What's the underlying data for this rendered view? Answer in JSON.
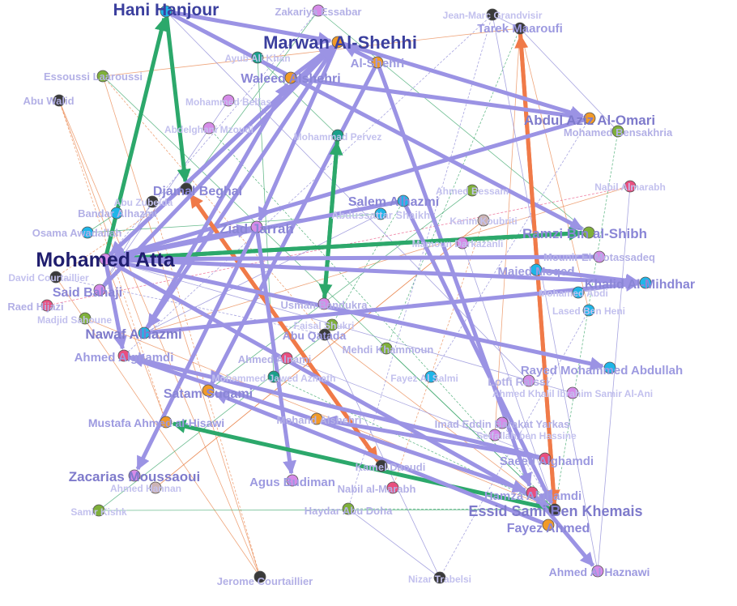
{
  "colors": {
    "highlight_edge_purple": "#9b93e4",
    "highlight_edge_green": "#2ca86b",
    "highlight_edge_orange": "#f07a48",
    "thin_edge_orange": "#e9874f",
    "thin_edge_green": "#3aa56a",
    "thin_edge_purple": "#8a86d6",
    "node_cyan": "#1fb6e8",
    "node_orange": "#f19a28",
    "node_purple": "#d68be8",
    "node_green": "#7fb03a",
    "node_pink": "#e94f7f",
    "node_dark": "#3a3a3a",
    "node_teal": "#1aa08a",
    "node_tan": "#cdb4b4",
    "node_stroke": "#555555"
  },
  "nodes": [
    {
      "id": "hani",
      "label": "Hani Hanjour",
      "color": "cyan",
      "weight": "major"
    },
    {
      "id": "zakariya",
      "label": "Zakariya Essabar",
      "color": "purple",
      "weight": "minor"
    },
    {
      "id": "jeanmarc",
      "label": "Jean-Marc Grandvisir",
      "color": "dark",
      "weight": "minor"
    },
    {
      "id": "tarek",
      "label": "Tarek Maaroufi",
      "color": "dark",
      "weight": "mid"
    },
    {
      "id": "marwan",
      "label": "Marwan Al-Shehhi",
      "color": "orange",
      "weight": "major"
    },
    {
      "id": "ayub",
      "label": "Ayub Ali Khan",
      "color": "teal",
      "weight": "minor"
    },
    {
      "id": "alshehri",
      "label": "Al-Shehri",
      "color": "orange",
      "weight": "mid"
    },
    {
      "id": "waleed",
      "label": "Waleed Alshehri",
      "color": "orange",
      "weight": "mid"
    },
    {
      "id": "essoussi",
      "label": "Essoussi Laaroussi",
      "color": "green",
      "weight": "minor"
    },
    {
      "id": "abuwalid",
      "label": "Abu Walid",
      "color": "dark",
      "weight": "minor"
    },
    {
      "id": "belfas",
      "label": "Mohammed Belfas",
      "color": "purple",
      "weight": "minor"
    },
    {
      "id": "abdulaziz",
      "label": "Abdul Aziz Al-Omari",
      "color": "orange",
      "weight": "mid"
    },
    {
      "id": "bensakhria",
      "label": "Mohamed Bensakhria",
      "color": "green",
      "weight": "minor"
    },
    {
      "id": "mzoudi",
      "label": "Abdelghani Mzoudi",
      "color": "purple",
      "weight": "minor"
    },
    {
      "id": "pervez",
      "label": "Mohammad Pervez",
      "color": "teal",
      "weight": "minor"
    },
    {
      "id": "nabil1",
      "label": "Nabil Almarabh",
      "color": "pink",
      "weight": "minor"
    },
    {
      "id": "djamel",
      "label": "Djamal Beghal",
      "color": "dark",
      "weight": "mid"
    },
    {
      "id": "abuzubeida",
      "label": "Abu Zubeida",
      "color": "dark",
      "weight": "minor"
    },
    {
      "id": "ahmedbessam",
      "label": "Ahmed Bessam",
      "color": "green",
      "weight": "minor"
    },
    {
      "id": "salem",
      "label": "Salem Alhazmi",
      "color": "cyan",
      "weight": "mid"
    },
    {
      "id": "bandar",
      "label": "Bandar Alhazmi",
      "color": "cyan",
      "weight": "minor"
    },
    {
      "id": "abdussattar",
      "label": "Abdussattar Shaikh",
      "color": "cyan",
      "weight": "minor"
    },
    {
      "id": "kamel",
      "label": "Kamel Daoudi",
      "color": "dark",
      "weight": "minor"
    },
    {
      "id": "karim",
      "label": "Karim Koubriti",
      "color": "tan",
      "weight": "minor"
    },
    {
      "id": "ziad",
      "label": "Ziad Jarrah",
      "color": "purple",
      "weight": "mid"
    },
    {
      "id": "osama",
      "label": "Osama Awadallah",
      "color": "cyan",
      "weight": "minor"
    },
    {
      "id": "mamoun",
      "label": "Mamoun Darkazanli",
      "color": "purple",
      "weight": "minor"
    },
    {
      "id": "ramzi",
      "label": "Ramzi Bin al-Shibh",
      "color": "green",
      "weight": "mid"
    },
    {
      "id": "atta",
      "label": "Mohamed Atta",
      "color": "purple",
      "weight": "major"
    },
    {
      "id": "mounir",
      "label": "Mounir El Motassadeq",
      "color": "purple",
      "weight": "minor"
    },
    {
      "id": "davidc",
      "label": "David Courtaillier",
      "color": "dark",
      "weight": "minor"
    },
    {
      "id": "majed",
      "label": "Majed Moqed",
      "color": "cyan",
      "weight": "mid"
    },
    {
      "id": "khalid",
      "label": "Khalid Al-Mihdhar",
      "color": "cyan",
      "weight": "mid"
    },
    {
      "id": "saidbahaji",
      "label": "Said Bahaji",
      "color": "purple",
      "weight": "mid"
    },
    {
      "id": "mabdi",
      "label": "Mohamed Abdi",
      "color": "cyan",
      "weight": "minor"
    },
    {
      "id": "usman",
      "label": "Usman Bandukra",
      "color": "purple",
      "weight": "minor"
    },
    {
      "id": "raed",
      "label": "Raed Hijazi",
      "color": "pink",
      "weight": "minor"
    },
    {
      "id": "lased",
      "label": "Lased Ben Heni",
      "color": "cyan",
      "weight": "minor"
    },
    {
      "id": "madjid",
      "label": "Madjid Sahoune",
      "color": "green",
      "weight": "minor"
    },
    {
      "id": "faisal",
      "label": "Faisal Shukri",
      "color": "green",
      "weight": "minor"
    },
    {
      "id": "nawaf",
      "label": "Nawaf Alhazmi",
      "color": "cyan",
      "weight": "mid"
    },
    {
      "id": "abuqatada",
      "label": "Abu Qatada",
      "color": "dark",
      "weight": "minor"
    },
    {
      "id": "mehdi",
      "label": "Mehdi Khammoun",
      "color": "green",
      "weight": "minor"
    },
    {
      "id": "ahmedgh",
      "label": "Ahmed Alghamdi",
      "color": "pink",
      "weight": "mid"
    },
    {
      "id": "ahmednami",
      "label": "Ahmed Alnami",
      "color": "pink",
      "weight": "minor"
    },
    {
      "id": "rayed",
      "label": "Rayed Mohammed Abdullah",
      "color": "cyan",
      "weight": "mid"
    },
    {
      "id": "jawed",
      "label": "Mohammed Jawed Azmath",
      "color": "teal",
      "weight": "minor"
    },
    {
      "id": "fayezalsalmi",
      "label": "Fayez Al Salmi",
      "color": "cyan",
      "weight": "minor"
    },
    {
      "id": "lotfi",
      "label": "Lotfi Raissi",
      "color": "purple",
      "weight": "minor"
    },
    {
      "id": "ahmedkhalil",
      "label": "Ahmed Khalil Ibrahim Samir Al-Ani",
      "color": "purple",
      "weight": "minor"
    },
    {
      "id": "satam",
      "label": "Satam Suqami",
      "color": "orange",
      "weight": "mid"
    },
    {
      "id": "mustafa",
      "label": "Mustafa Ahmed al-Hisawi",
      "color": "orange",
      "weight": "mid"
    },
    {
      "id": "mohand",
      "label": "Mohand Alshehri",
      "color": "orange",
      "weight": "minor"
    },
    {
      "id": "imad",
      "label": "Imad Eddin Barakat Yarkas",
      "color": "purple",
      "weight": "minor"
    },
    {
      "id": "seifallah",
      "label": "Seifallah ben Hassine",
      "color": "purple",
      "weight": "minor"
    },
    {
      "id": "saeed",
      "label": "Saeed Alghamdi",
      "color": "pink",
      "weight": "mid"
    },
    {
      "id": "zacarias",
      "label": "Zacarias Moussaoui",
      "color": "purple",
      "weight": "mid"
    },
    {
      "id": "kamelmid",
      "label": "Kamel Daoudi",
      "color": "dark",
      "weight": "minor"
    },
    {
      "id": "agus",
      "label": "Agus Budiman",
      "color": "purple",
      "weight": "mid"
    },
    {
      "id": "ahmedh",
      "label": "Ahmed Hannan",
      "color": "tan",
      "weight": "minor"
    },
    {
      "id": "nabil2",
      "label": "Nabil al-Marabh",
      "color": "pink",
      "weight": "minor"
    },
    {
      "id": "hamza",
      "label": "Hamza Alghamdi",
      "color": "pink",
      "weight": "mid"
    },
    {
      "id": "samir",
      "label": "Samir Kishk",
      "color": "green",
      "weight": "minor"
    },
    {
      "id": "haydar",
      "label": "Haydar Abu Doha",
      "color": "green",
      "weight": "minor"
    },
    {
      "id": "essid",
      "label": "Essid Sami Ben Khemais",
      "color": "dark",
      "weight": "mid"
    },
    {
      "id": "fayez",
      "label": "Fayez Ahmed",
      "color": "orange",
      "weight": "mid"
    },
    {
      "id": "haznawi",
      "label": "Ahmed Al Haznawi",
      "color": "purple",
      "weight": "mid"
    },
    {
      "id": "jerome",
      "label": "Jerome Courtaillier",
      "color": "dark",
      "weight": "minor"
    },
    {
      "id": "nizar",
      "label": "Nizar Trabelsi",
      "color": "dark",
      "weight": "minor"
    }
  ],
  "highlight_edges": [
    {
      "from": "hani",
      "to": "marwan",
      "color": "purple"
    },
    {
      "from": "hani",
      "to": "djamel",
      "color": "green"
    },
    {
      "from": "atta",
      "to": "hani",
      "color": "green"
    },
    {
      "from": "hani",
      "to": "ramzi",
      "color": "purple"
    },
    {
      "from": "essid",
      "to": "tarek",
      "color": "orange"
    },
    {
      "from": "tarek",
      "to": "essid",
      "color": "orange"
    },
    {
      "from": "marwan",
      "to": "atta",
      "color": "purple"
    },
    {
      "from": "atta",
      "to": "marwan",
      "color": "purple"
    },
    {
      "from": "marwan",
      "to": "abdulaziz",
      "color": "purple"
    },
    {
      "from": "marwan",
      "to": "ziad",
      "color": "purple"
    },
    {
      "from": "marwan",
      "to": "nawaf",
      "color": "purple"
    },
    {
      "from": "waleed",
      "to": "marwan",
      "color": "purple"
    },
    {
      "from": "alshehri",
      "to": "marwan",
      "color": "purple"
    },
    {
      "from": "alshehri",
      "to": "satam",
      "color": "purple"
    },
    {
      "from": "alshehri",
      "to": "hamza",
      "color": "purple"
    },
    {
      "from": "waleed",
      "to": "abdulaziz",
      "color": "purple"
    },
    {
      "from": "abdulaziz",
      "to": "atta",
      "color": "purple"
    },
    {
      "from": "pervez",
      "to": "usman",
      "color": "green"
    },
    {
      "from": "usman",
      "to": "pervez",
      "color": "green"
    },
    {
      "from": "djamel",
      "to": "kamelmid",
      "color": "orange"
    },
    {
      "from": "kamelmid",
      "to": "djamel",
      "color": "orange"
    },
    {
      "from": "atta",
      "to": "ramzi",
      "color": "green"
    },
    {
      "from": "ramzi",
      "to": "atta",
      "color": "green"
    },
    {
      "from": "atta",
      "to": "ziad",
      "color": "purple"
    },
    {
      "from": "ziad",
      "to": "atta",
      "color": "purple"
    },
    {
      "from": "atta",
      "to": "khalid",
      "color": "purple"
    },
    {
      "from": "atta",
      "to": "rayed",
      "color": "purple"
    },
    {
      "from": "atta",
      "to": "essid",
      "color": "purple"
    },
    {
      "from": "salem",
      "to": "atta",
      "color": "purple"
    },
    {
      "from": "salem",
      "to": "essid",
      "color": "purple"
    },
    {
      "from": "nawaf",
      "to": "khalid",
      "color": "purple"
    },
    {
      "from": "nawaf",
      "to": "waleed",
      "color": "purple"
    },
    {
      "from": "majed",
      "to": "khalid",
      "color": "purple"
    },
    {
      "from": "ziad",
      "to": "agus",
      "color": "purple"
    },
    {
      "from": "ziad",
      "to": "zacarias",
      "color": "purple"
    },
    {
      "from": "ahmedgh",
      "to": "hamza",
      "color": "purple"
    },
    {
      "from": "saeed",
      "to": "mohand",
      "color": "purple"
    },
    {
      "from": "essid",
      "to": "mustafa",
      "color": "green"
    },
    {
      "from": "saeed",
      "to": "ahmedgh",
      "color": "purple"
    },
    {
      "from": "hamza",
      "to": "haznawi",
      "color": "purple"
    },
    {
      "from": "fayez",
      "to": "satam",
      "color": "purple"
    },
    {
      "from": "mounir",
      "to": "atta",
      "color": "purple"
    },
    {
      "from": "atta",
      "to": "ahmedgh",
      "color": "purple"
    },
    {
      "from": "saidbahaji",
      "to": "marwan",
      "color": "purple"
    }
  ],
  "thin_edges": [
    {
      "from": "zakariya",
      "to": "atta",
      "color": "purple"
    },
    {
      "from": "zakariya",
      "to": "ramzi",
      "color": "green"
    },
    {
      "from": "jeanmarc",
      "to": "tarek",
      "color": "purple"
    },
    {
      "from": "jeanmarc",
      "to": "ahmedgh",
      "color": "purple"
    },
    {
      "from": "essoussi",
      "to": "essid",
      "color": "green"
    },
    {
      "from": "essoussi",
      "to": "tarek",
      "color": "orange"
    },
    {
      "from": "abuwalid",
      "to": "mustafa",
      "color": "orange"
    },
    {
      "from": "abuwalid",
      "to": "nawaf",
      "color": "orange"
    },
    {
      "from": "belfas",
      "to": "saidbahaji",
      "color": "purple"
    },
    {
      "from": "mzoudi",
      "to": "essid",
      "color": "green"
    },
    {
      "from": "ayub",
      "to": "jawed",
      "color": "green"
    },
    {
      "from": "ayub",
      "to": "kamel",
      "color": "orange"
    },
    {
      "from": "nabil1",
      "to": "raed",
      "color": "pink"
    },
    {
      "from": "nabil1",
      "to": "nawaf",
      "color": "orange"
    },
    {
      "from": "abuzubeida",
      "to": "saidbahaji",
      "color": "purple"
    },
    {
      "from": "abuzubeida",
      "to": "jerome",
      "color": "orange"
    },
    {
      "from": "ahmedbessam",
      "to": "satam",
      "color": "green"
    },
    {
      "from": "abdussattar",
      "to": "nawaf",
      "color": "purple"
    },
    {
      "from": "karim",
      "to": "nabil2",
      "color": "orange"
    },
    {
      "from": "karim",
      "to": "ahmedh",
      "color": "orange"
    },
    {
      "from": "osama",
      "to": "abdussattar",
      "color": "green"
    },
    {
      "from": "mamoun",
      "to": "ramzi",
      "color": "green"
    },
    {
      "from": "mamoun",
      "to": "essid",
      "color": "purple"
    },
    {
      "from": "davidc",
      "to": "jerome",
      "color": "orange"
    },
    {
      "from": "davidc",
      "to": "abuqatada",
      "color": "purple"
    },
    {
      "from": "mabdi",
      "to": "khalid",
      "color": "purple"
    },
    {
      "from": "madjid",
      "to": "essid",
      "color": "orange"
    },
    {
      "from": "faisal",
      "to": "salem",
      "color": "green"
    },
    {
      "from": "abuqatada",
      "to": "essid",
      "color": "orange"
    },
    {
      "from": "abuqatada",
      "to": "nizar",
      "color": "purple"
    },
    {
      "from": "mehdi",
      "to": "tarek",
      "color": "green"
    },
    {
      "from": "ahmednami",
      "to": "saeed",
      "color": "purple"
    },
    {
      "from": "jawed",
      "to": "kamel",
      "color": "green"
    },
    {
      "from": "fayezalsalmi",
      "to": "abdulaziz",
      "color": "purple"
    },
    {
      "from": "lotfi",
      "to": "hani",
      "color": "purple"
    },
    {
      "from": "ahmedkhalil",
      "to": "atta",
      "color": "purple"
    },
    {
      "from": "imad",
      "to": "essid",
      "color": "purple"
    },
    {
      "from": "seifallah",
      "to": "tarek",
      "color": "orange"
    },
    {
      "from": "samir",
      "to": "abuqatada",
      "color": "green"
    },
    {
      "from": "haydar",
      "to": "essid",
      "color": "green"
    },
    {
      "from": "haydar",
      "to": "nizar",
      "color": "purple"
    },
    {
      "from": "jerome",
      "to": "essoussi",
      "color": "orange"
    },
    {
      "from": "nizar",
      "to": "lased",
      "color": "purple"
    },
    {
      "from": "lased",
      "to": "tarek",
      "color": "orange"
    },
    {
      "from": "zakariya",
      "to": "djamel",
      "color": "green"
    },
    {
      "from": "essoussi",
      "to": "abuqatada",
      "color": "orange"
    },
    {
      "from": "mustafa",
      "to": "atta",
      "color": "orange"
    },
    {
      "from": "jeanmarc",
      "to": "haznawi",
      "color": "purple"
    },
    {
      "from": "jawed",
      "to": "essid",
      "color": "green"
    },
    {
      "from": "abuwalid",
      "to": "jerome",
      "color": "orange"
    },
    {
      "from": "pervez",
      "to": "ayub",
      "color": "green"
    },
    {
      "from": "kamel",
      "to": "raed",
      "color": "orange"
    },
    {
      "from": "osama",
      "to": "bandar",
      "color": "green"
    },
    {
      "from": "mehdi",
      "to": "essid",
      "color": "green"
    },
    {
      "from": "davidc",
      "to": "djamel",
      "color": "orange"
    },
    {
      "from": "samir",
      "to": "essid",
      "color": "green"
    },
    {
      "from": "nabil1",
      "to": "haznawi",
      "color": "purple"
    },
    {
      "from": "jeanmarc",
      "to": "haydar",
      "color": "purple"
    },
    {
      "from": "ahmedh",
      "to": "karim",
      "color": "orange"
    },
    {
      "from": "bensakhria",
      "to": "tarek",
      "color": "purple"
    },
    {
      "from": "bensakhria",
      "to": "essid",
      "color": "green"
    }
  ]
}
